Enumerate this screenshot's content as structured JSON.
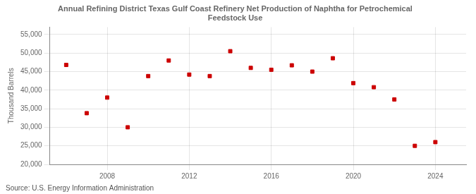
{
  "chart_data": {
    "type": "scatter",
    "title": "Annual Refining District Texas Gulf Coast Refinery Net Production of Naphtha for Petrochemical\nFeedstock Use",
    "ylabel": "Thousand Barrels",
    "annotation": "Source: U.S. Energy Information Administration",
    "x": [
      2006,
      2007,
      2008,
      2009,
      2010,
      2011,
      2012,
      2013,
      2014,
      2015,
      2016,
      2017,
      2018,
      2019,
      2020,
      2021,
      2022,
      2023,
      2024
    ],
    "values": [
      46800,
      33800,
      38000,
      30000,
      43800,
      48000,
      44200,
      43800,
      50500,
      46000,
      45500,
      46700,
      45000,
      48600,
      41900,
      40800,
      37500,
      25000,
      26000
    ],
    "color": "#cc0000",
    "marker": "square",
    "xlim": [
      2005.2,
      2025.5
    ],
    "xticks": [
      2008,
      2012,
      2016,
      2020,
      2024
    ],
    "ylim": [
      20000,
      57000
    ],
    "yticks": [
      {
        "value": 20000,
        "label": "20,000"
      },
      {
        "value": 25000,
        "label": "25,000"
      },
      {
        "value": 30000,
        "label": "30,000"
      },
      {
        "value": 35000,
        "label": "35,000"
      },
      {
        "value": 40000,
        "label": "40,000"
      },
      {
        "value": 45000,
        "label": "45,000"
      },
      {
        "value": 50000,
        "label": "50,000"
      },
      {
        "value": 55000,
        "label": "55,000"
      }
    ],
    "grid": true
  }
}
